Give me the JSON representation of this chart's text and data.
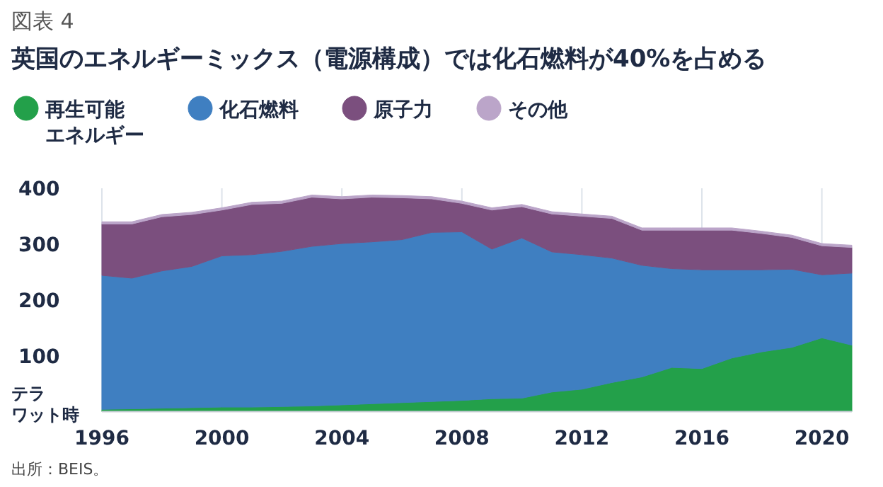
{
  "chart_data": {
    "type": "area",
    "stacked": true,
    "title": "英国のエネルギーミックス（電源構成）では化石燃料が40%を占める",
    "ylabel": "テラワット時",
    "annotations": [
      "図表 4",
      "出所：BEIS。"
    ],
    "x": [
      1996,
      1997,
      1998,
      1999,
      2000,
      2001,
      2002,
      2003,
      2004,
      2005,
      2006,
      2007,
      2008,
      2009,
      2010,
      2011,
      2012,
      2013,
      2014,
      2015,
      2016,
      2017,
      2018,
      2019,
      2020,
      2021
    ],
    "series": [
      {
        "name": "再生可能エネルギー",
        "color": "#23a04a",
        "values": [
          4,
          5,
          6,
          7,
          8,
          8,
          9,
          10,
          12,
          14,
          16,
          18,
          20,
          23,
          24,
          35,
          40,
          52,
          62,
          79,
          77,
          96,
          107,
          115,
          132,
          119
        ]
      },
      {
        "name": "化石燃料",
        "color": "#3f7fc1",
        "values": [
          240,
          234,
          246,
          253,
          271,
          273,
          278,
          286,
          289,
          290,
          292,
          303,
          302,
          268,
          287,
          251,
          241,
          223,
          200,
          177,
          177,
          158,
          147,
          140,
          113,
          129
        ]
      },
      {
        "name": "原子力",
        "color": "#7b4f7e",
        "values": [
          92,
          97,
          97,
          93,
          82,
          90,
          86,
          88,
          80,
          80,
          75,
          60,
          51,
          70,
          56,
          68,
          69,
          71,
          63,
          69,
          71,
          71,
          65,
          57,
          52,
          46
        ]
      },
      {
        "name": "その他",
        "color": "#bba5c9",
        "values": [
          4,
          4,
          4,
          4,
          4,
          4,
          4,
          4,
          4,
          4,
          4,
          4,
          4,
          4,
          4,
          4,
          4,
          4,
          4,
          4,
          4,
          4,
          4,
          4,
          4,
          4
        ]
      }
    ],
    "xlim": [
      1996,
      2021
    ],
    "ylim": [
      0,
      400
    ],
    "xticks": [
      1996,
      2000,
      2004,
      2008,
      2012,
      2016,
      2020
    ],
    "yticks": [
      100,
      200,
      300,
      400
    ],
    "grid": "x",
    "legend": "top left"
  }
}
